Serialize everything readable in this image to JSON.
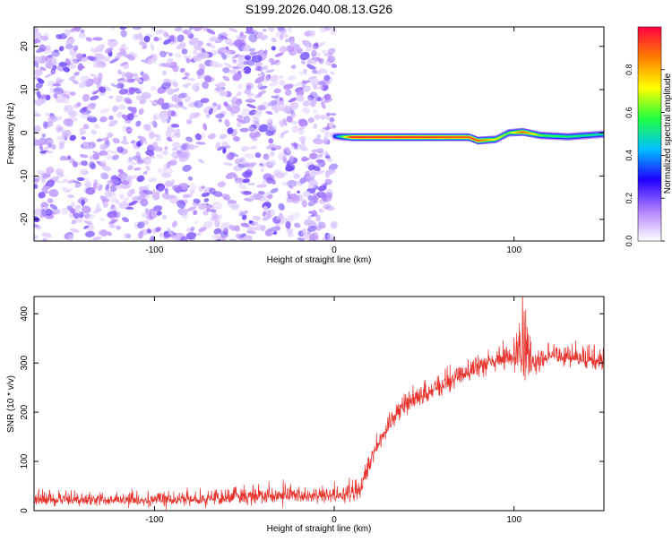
{
  "title": "S199.2026.040.08.13.G26",
  "colors": {
    "line": "#e8302a",
    "gradient": [
      "#ffffff",
      "#b080ff",
      "#2000ff",
      "#00c0ff",
      "#20ff40",
      "#ffff00",
      "#ff8000",
      "#ff0040"
    ]
  },
  "chart_data": [
    {
      "type": "heatmap",
      "title": "S199.2026.040.08.13.G26",
      "xlabel": "Height of straight line (km)",
      "ylabel": "Frequency (Hz)",
      "xlim": [
        -167,
        150
      ],
      "ylim": [
        -25,
        24.5
      ],
      "xticks": [
        {
          "value": -100,
          "label": "-100"
        },
        {
          "value": 0,
          "label": "0"
        },
        {
          "value": 100,
          "label": "100"
        }
      ],
      "yticks": [
        {
          "value": 20,
          "label": "20"
        },
        {
          "value": 10,
          "label": "10"
        },
        {
          "value": 0,
          "label": "0"
        },
        {
          "value": -10,
          "label": "-10"
        },
        {
          "value": -20,
          "label": "-20"
        }
      ],
      "colorbar": {
        "label": "Normalized spectral amplitude",
        "range": [
          0,
          1
        ],
        "ticks": [
          {
            "value": 0.0,
            "label": "0.0"
          },
          {
            "value": 0.2,
            "label": "0.2"
          },
          {
            "value": 0.4,
            "label": "0.4"
          },
          {
            "value": 0.6,
            "label": "0.6"
          },
          {
            "value": 0.8,
            "label": "0.8"
          }
        ]
      },
      "noise_region_x": [
        -167,
        0
      ],
      "noise_amplitude_range": [
        0.05,
        0.22
      ],
      "signal_track": [
        {
          "x": 0,
          "freq": -0.8,
          "amp": 0.3
        },
        {
          "x": 10,
          "freq": -1.0,
          "amp": 0.95
        },
        {
          "x": 40,
          "freq": -1.0,
          "amp": 0.95
        },
        {
          "x": 75,
          "freq": -1.0,
          "amp": 0.9
        },
        {
          "x": 80,
          "freq": -1.8,
          "amp": 0.9
        },
        {
          "x": 90,
          "freq": -1.5,
          "amp": 0.7
        },
        {
          "x": 97,
          "freq": 0.0,
          "amp": 0.6
        },
        {
          "x": 105,
          "freq": 0.2,
          "amp": 0.9
        },
        {
          "x": 115,
          "freq": -0.6,
          "amp": 0.6
        },
        {
          "x": 130,
          "freq": -0.9,
          "amp": 0.55
        },
        {
          "x": 150,
          "freq": -0.3,
          "amp": 0.5
        }
      ]
    },
    {
      "type": "line",
      "xlabel": "Height of straight line (km)",
      "ylabel": "SNR (10 * v/v)",
      "xlim": [
        -167,
        150
      ],
      "ylim": [
        0,
        435
      ],
      "xticks": [
        {
          "value": -100,
          "label": "-100"
        },
        {
          "value": 0,
          "label": "0"
        },
        {
          "value": 100,
          "label": "100"
        }
      ],
      "yticks": [
        {
          "value": 0,
          "label": "0"
        },
        {
          "value": 100,
          "label": "100"
        },
        {
          "value": 200,
          "label": "200"
        },
        {
          "value": 300,
          "label": "300"
        },
        {
          "value": 400,
          "label": "400"
        }
      ],
      "series": [
        {
          "name": "SNR",
          "x": [
            -167,
            -150,
            -130,
            -110,
            -90,
            -70,
            -50,
            -30,
            -10,
            0,
            10,
            15,
            20,
            25,
            30,
            35,
            40,
            45,
            50,
            60,
            70,
            80,
            90,
            100,
            105,
            110,
            115,
            120,
            130,
            140,
            150
          ],
          "y": [
            22,
            22,
            22,
            22,
            22,
            24,
            28,
            30,
            30,
            30,
            32,
            45,
            100,
            140,
            170,
            200,
            215,
            225,
            235,
            255,
            275,
            290,
            305,
            310,
            320,
            300,
            305,
            315,
            312,
            308,
            302
          ],
          "noise_std": [
            9,
            9,
            9,
            9,
            9,
            10,
            12,
            12,
            12,
            12,
            12,
            12,
            14,
            14,
            14,
            14,
            14,
            14,
            14,
            14,
            14,
            14,
            14,
            16,
            50,
            24,
            16,
            14,
            14,
            14,
            14
          ]
        }
      ]
    }
  ]
}
